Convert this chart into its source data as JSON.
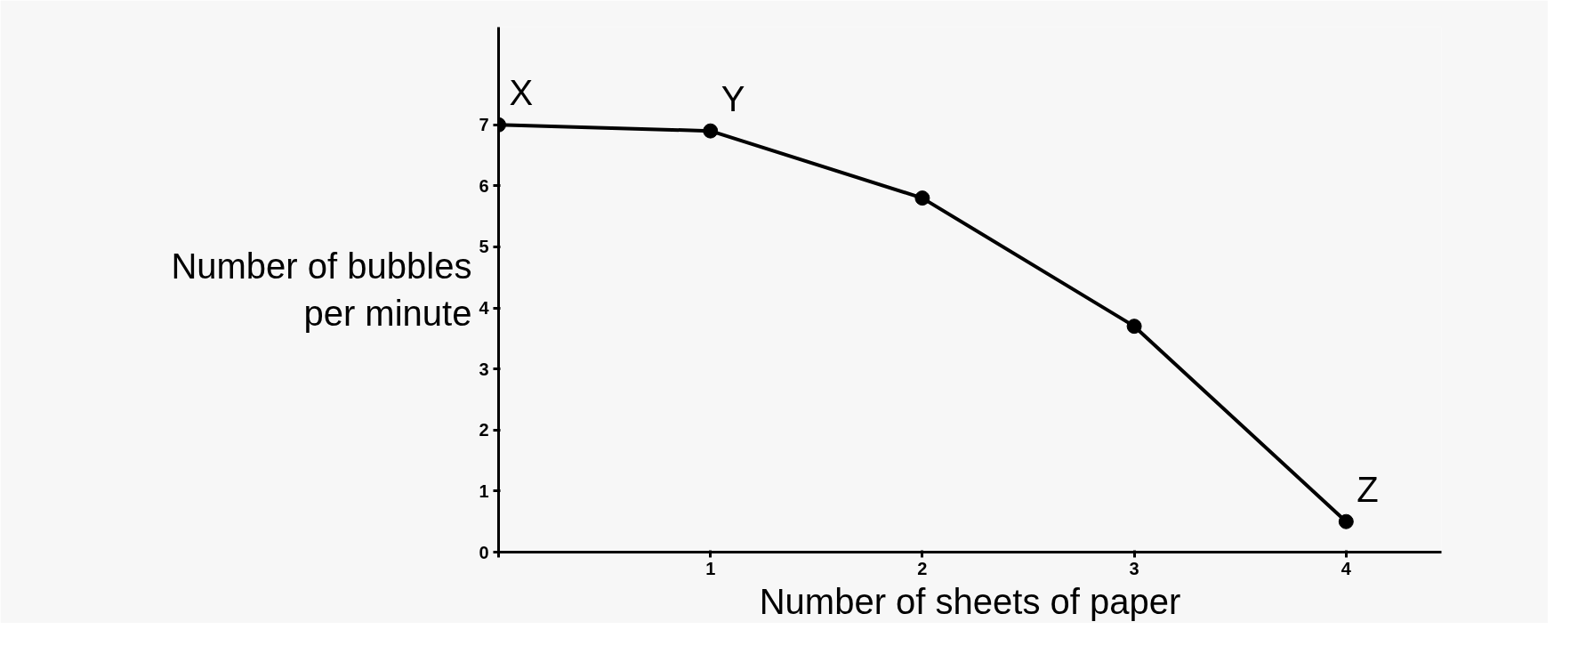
{
  "chart_data": {
    "type": "line",
    "xlabel": "Number of sheets of paper",
    "ylabel": "Number of bubbles per minute",
    "x": [
      0,
      1,
      2,
      3,
      4
    ],
    "series": [
      {
        "color": "#000000",
        "values": [
          7,
          6.9,
          5.8,
          3.7,
          0.5
        ]
      }
    ],
    "xlim": [
      0,
      4.45
    ],
    "ylim": [
      0,
      8.6
    ],
    "xticks": [
      {
        "value": 0,
        "label": null
      },
      1,
      2,
      3,
      4
    ],
    "yticks": [
      0,
      1,
      2,
      3,
      4,
      5,
      6,
      7
    ],
    "marker": "circle",
    "grid": false,
    "annotations": [
      {
        "text": "X",
        "x": 0,
        "y": 7
      },
      {
        "text": "Y",
        "x": 1,
        "y": 6.9
      },
      {
        "text": "Z",
        "x": 4,
        "y": 0.5
      }
    ]
  }
}
